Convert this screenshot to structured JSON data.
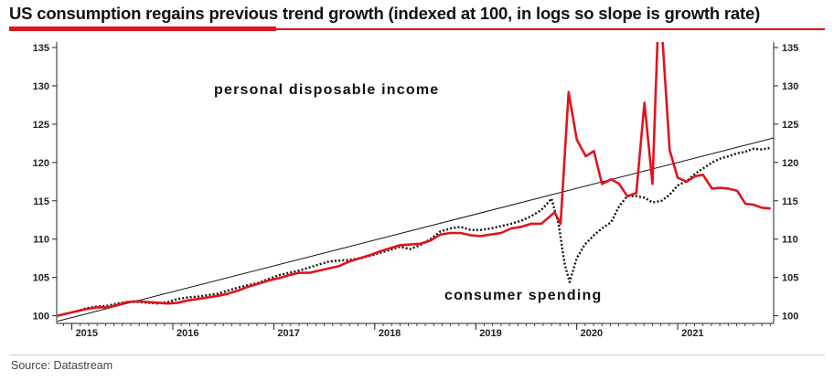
{
  "header": {
    "title": "US consumption regains previous trend growth (indexed at 100, in logs so slope is growth rate)"
  },
  "footer": {
    "source": "Source: Datastream"
  },
  "colors": {
    "title_rule": "#e0141e",
    "income_line": "#e0141e",
    "spending_line": "#111111",
    "trend_line": "#111111"
  },
  "chart_data": {
    "type": "line",
    "title": "US consumption regains previous trend growth (indexed at 100, in logs so slope is growth rate)",
    "xlabel": "",
    "ylabel": "",
    "xlim": [
      2014.85,
      2021.95
    ],
    "ylim": [
      99,
      135
    ],
    "y_ticks": [
      100,
      105,
      110,
      115,
      120,
      125,
      130,
      135
    ],
    "y_axes": "left and right (mirrored)",
    "x_ticks": [
      {
        "label": "2015",
        "x": 2015.0
      },
      {
        "label": "2016",
        "x": 2016.0
      },
      {
        "label": "2017",
        "x": 2017.0
      },
      {
        "label": "2018",
        "x": 2018.0
      },
      {
        "label": "2019",
        "x": 2019.0
      },
      {
        "label": "2020",
        "x": 2020.0
      },
      {
        "label": "2021",
        "x": 2021.0
      }
    ],
    "grid": false,
    "legend": "none (direct annotations)",
    "annotations": {
      "income": "personal disposable income",
      "spending": "consumer spending"
    },
    "series": [
      {
        "name": "personal disposable income",
        "style": "solid",
        "points": [
          [
            2014.86,
            100.0
          ],
          [
            2014.95,
            100.3
          ],
          [
            2015.05,
            100.6
          ],
          [
            2015.15,
            100.9
          ],
          [
            2015.25,
            101.1
          ],
          [
            2015.35,
            101.1
          ],
          [
            2015.45,
            101.4
          ],
          [
            2015.55,
            101.8
          ],
          [
            2015.65,
            101.9
          ],
          [
            2015.75,
            101.8
          ],
          [
            2015.85,
            101.7
          ],
          [
            2015.95,
            101.6
          ],
          [
            2016.05,
            101.7
          ],
          [
            2016.15,
            102.0
          ],
          [
            2016.25,
            102.2
          ],
          [
            2016.35,
            102.4
          ],
          [
            2016.45,
            102.6
          ],
          [
            2016.55,
            102.9
          ],
          [
            2016.65,
            103.3
          ],
          [
            2016.75,
            103.8
          ],
          [
            2016.85,
            104.2
          ],
          [
            2016.95,
            104.6
          ],
          [
            2017.05,
            104.9
          ],
          [
            2017.15,
            105.3
          ],
          [
            2017.25,
            105.6
          ],
          [
            2017.35,
            105.6
          ],
          [
            2017.45,
            105.9
          ],
          [
            2017.55,
            106.2
          ],
          [
            2017.65,
            106.5
          ],
          [
            2017.75,
            107.1
          ],
          [
            2017.85,
            107.5
          ],
          [
            2017.95,
            107.9
          ],
          [
            2018.05,
            108.4
          ],
          [
            2018.15,
            108.8
          ],
          [
            2018.25,
            109.2
          ],
          [
            2018.35,
            109.3
          ],
          [
            2018.45,
            109.4
          ],
          [
            2018.55,
            109.8
          ],
          [
            2018.65,
            110.6
          ],
          [
            2018.75,
            110.8
          ],
          [
            2018.85,
            110.8
          ],
          [
            2018.95,
            110.5
          ],
          [
            2019.05,
            110.4
          ],
          [
            2019.15,
            110.6
          ],
          [
            2019.25,
            110.8
          ],
          [
            2019.35,
            111.4
          ],
          [
            2019.45,
            111.6
          ],
          [
            2019.55,
            112.0
          ],
          [
            2019.65,
            112.0
          ],
          [
            2019.72,
            112.8
          ],
          [
            2019.78,
            113.5
          ],
          [
            2019.84,
            112.0
          ],
          [
            2019.92,
            129.2
          ],
          [
            2020.0,
            123.0
          ],
          [
            2020.09,
            120.8
          ],
          [
            2020.17,
            121.5
          ],
          [
            2020.25,
            117.2
          ],
          [
            2020.34,
            117.8
          ],
          [
            2020.42,
            117.2
          ],
          [
            2020.5,
            115.6
          ],
          [
            2020.59,
            116.0
          ],
          [
            2020.67,
            127.8
          ],
          [
            2020.75,
            117.2
          ],
          [
            2020.8,
            136.0
          ],
          [
            2020.85,
            136.0
          ],
          [
            2020.92,
            121.6
          ],
          [
            2021.0,
            118.0
          ],
          [
            2021.09,
            117.5
          ],
          [
            2021.17,
            118.2
          ],
          [
            2021.25,
            118.4
          ],
          [
            2021.34,
            116.6
          ],
          [
            2021.42,
            116.7
          ],
          [
            2021.5,
            116.6
          ],
          [
            2021.59,
            116.3
          ],
          [
            2021.67,
            114.6
          ],
          [
            2021.75,
            114.5
          ],
          [
            2021.83,
            114.1
          ],
          [
            2021.92,
            114.0
          ]
        ]
      },
      {
        "name": "consumer spending",
        "style": "dotted",
        "points": [
          [
            2014.86,
            100.0
          ],
          [
            2014.95,
            100.3
          ],
          [
            2015.05,
            100.6
          ],
          [
            2015.15,
            101.0
          ],
          [
            2015.25,
            101.2
          ],
          [
            2015.35,
            101.3
          ],
          [
            2015.45,
            101.6
          ],
          [
            2015.55,
            101.8
          ],
          [
            2015.65,
            101.8
          ],
          [
            2015.75,
            101.7
          ],
          [
            2015.85,
            101.6
          ],
          [
            2015.95,
            101.8
          ],
          [
            2016.05,
            102.2
          ],
          [
            2016.15,
            102.4
          ],
          [
            2016.25,
            102.5
          ],
          [
            2016.35,
            102.7
          ],
          [
            2016.45,
            102.9
          ],
          [
            2016.55,
            103.3
          ],
          [
            2016.65,
            103.7
          ],
          [
            2016.75,
            104.0
          ],
          [
            2016.85,
            104.3
          ],
          [
            2016.95,
            104.8
          ],
          [
            2017.05,
            105.3
          ],
          [
            2017.15,
            105.6
          ],
          [
            2017.25,
            105.9
          ],
          [
            2017.35,
            106.3
          ],
          [
            2017.45,
            106.7
          ],
          [
            2017.55,
            107.1
          ],
          [
            2017.65,
            107.2
          ],
          [
            2017.75,
            107.3
          ],
          [
            2017.85,
            107.5
          ],
          [
            2017.95,
            107.8
          ],
          [
            2018.05,
            108.2
          ],
          [
            2018.15,
            108.6
          ],
          [
            2018.25,
            109.0
          ],
          [
            2018.35,
            108.7
          ],
          [
            2018.45,
            109.2
          ],
          [
            2018.55,
            110.0
          ],
          [
            2018.65,
            111.0
          ],
          [
            2018.75,
            111.4
          ],
          [
            2018.85,
            111.6
          ],
          [
            2018.95,
            111.2
          ],
          [
            2019.05,
            111.2
          ],
          [
            2019.15,
            111.4
          ],
          [
            2019.25,
            111.7
          ],
          [
            2019.35,
            112.0
          ],
          [
            2019.45,
            112.4
          ],
          [
            2019.55,
            113.0
          ],
          [
            2019.65,
            113.8
          ],
          [
            2019.75,
            115.3
          ],
          [
            2019.82,
            112.0
          ],
          [
            2019.88,
            106.8
          ],
          [
            2019.93,
            104.4
          ],
          [
            2020.0,
            107.5
          ],
          [
            2020.08,
            109.3
          ],
          [
            2020.17,
            110.5
          ],
          [
            2020.25,
            111.4
          ],
          [
            2020.34,
            112.2
          ],
          [
            2020.42,
            114.3
          ],
          [
            2020.5,
            115.6
          ],
          [
            2020.59,
            115.6
          ],
          [
            2020.67,
            115.4
          ],
          [
            2020.75,
            114.8
          ],
          [
            2020.84,
            115.0
          ],
          [
            2020.92,
            115.8
          ],
          [
            2021.0,
            117.0
          ],
          [
            2021.09,
            117.6
          ],
          [
            2021.17,
            118.5
          ],
          [
            2021.25,
            119.2
          ],
          [
            2021.34,
            120.0
          ],
          [
            2021.42,
            120.5
          ],
          [
            2021.5,
            120.8
          ],
          [
            2021.59,
            121.2
          ],
          [
            2021.67,
            121.4
          ],
          [
            2021.75,
            121.8
          ],
          [
            2021.83,
            121.7
          ],
          [
            2021.92,
            121.9
          ]
        ]
      },
      {
        "name": "trend",
        "style": "thin solid",
        "points": [
          [
            2014.86,
            99.3
          ],
          [
            2021.95,
            123.2
          ]
        ]
      }
    ]
  }
}
